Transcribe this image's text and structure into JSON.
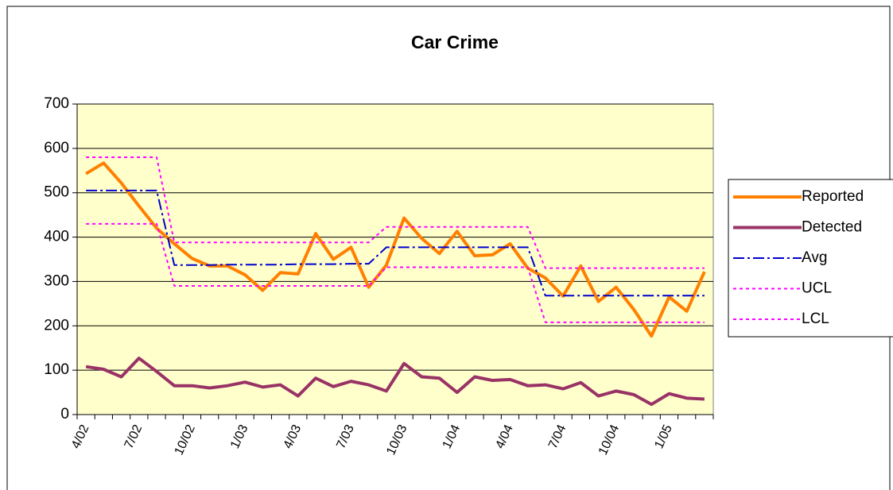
{
  "chart_data": {
    "type": "line",
    "title": "Car Crime",
    "categories": [
      "4/02",
      null,
      null,
      "7/02",
      null,
      null,
      "10/02",
      null,
      null,
      "1/03",
      null,
      null,
      "4/03",
      null,
      null,
      "7/03",
      null,
      null,
      "10/03",
      null,
      null,
      "1/04",
      null,
      null,
      "4/04",
      null,
      null,
      "7/04",
      null,
      null,
      "10/04",
      null,
      null,
      "1/05",
      null,
      null
    ],
    "series": [
      {
        "name": "Reported",
        "color": "#ff8000",
        "style": "solid",
        "width": 4,
        "values": [
          543,
          567,
          522,
          470,
          420,
          385,
          352,
          335,
          335,
          315,
          280,
          320,
          317,
          408,
          350,
          377,
          287,
          337,
          443,
          397,
          363,
          413,
          358,
          360,
          385,
          330,
          308,
          267,
          335,
          255,
          287,
          237,
          177,
          265,
          233,
          322
        ]
      },
      {
        "name": "Detected",
        "color": "#993366",
        "style": "solid",
        "width": 4,
        "values": [
          108,
          102,
          85,
          127,
          97,
          65,
          65,
          60,
          65,
          73,
          62,
          67,
          42,
          82,
          63,
          75,
          67,
          53,
          115,
          85,
          82,
          50,
          85,
          77,
          79,
          65,
          67,
          58,
          72,
          42,
          53,
          45,
          23,
          47,
          37,
          35
        ]
      },
      {
        "name": "Avg",
        "color": "#0000cc",
        "style": "dashdot",
        "width": 2,
        "values": [
          505,
          505,
          505,
          505,
          505,
          337,
          337,
          337,
          338,
          338,
          338,
          338,
          339,
          339,
          339,
          340,
          340,
          377,
          377,
          377,
          377,
          377,
          377,
          377,
          377,
          377,
          268,
          268,
          268,
          268,
          268,
          268,
          268,
          268,
          268,
          268
        ]
      },
      {
        "name": "UCL",
        "color": "#ff00ff",
        "style": "dotted",
        "width": 2,
        "values": [
          580,
          580,
          580,
          580,
          580,
          388,
          388,
          388,
          388,
          388,
          388,
          388,
          388,
          388,
          388,
          388,
          388,
          423,
          423,
          423,
          423,
          423,
          423,
          423,
          423,
          423,
          330,
          330,
          330,
          330,
          330,
          330,
          330,
          330,
          330,
          330
        ]
      },
      {
        "name": "LCL",
        "color": "#ff00ff",
        "style": "dotted",
        "width": 2,
        "values": [
          430,
          430,
          430,
          430,
          430,
          290,
          290,
          290,
          290,
          290,
          290,
          290,
          290,
          290,
          290,
          290,
          290,
          332,
          332,
          332,
          332,
          332,
          332,
          332,
          332,
          332,
          208,
          208,
          208,
          208,
          208,
          208,
          208,
          208,
          208,
          208
        ]
      }
    ],
    "ylim": [
      0,
      700
    ],
    "yticks": [
      0,
      100,
      200,
      300,
      400,
      500,
      600,
      700
    ],
    "grid": true,
    "legend": "right",
    "plot_background": "#ffffcc"
  }
}
